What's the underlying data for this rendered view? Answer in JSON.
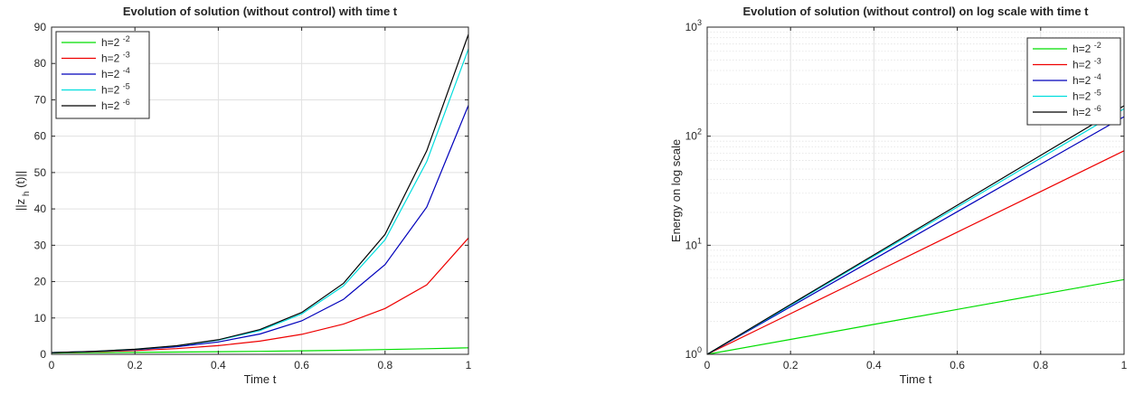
{
  "chart_data": [
    {
      "type": "line",
      "title": "Evolution of solution (without control) with time t",
      "xlabel": "Time t",
      "ylabel": "||z",
      "ylabel_sub": "h",
      "ylabel_tail": "(t)||",
      "xlim": [
        0,
        1
      ],
      "ylim": [
        0,
        90
      ],
      "yscale": "linear",
      "xticks": [
        0,
        0.2,
        0.4,
        0.6,
        0.8,
        1
      ],
      "xticklabels": [
        "0",
        "0.2",
        "0.4",
        "0.6",
        "0.8",
        "1"
      ],
      "yticks": [
        0,
        10,
        20,
        30,
        40,
        50,
        60,
        70,
        80,
        90
      ],
      "yticklabels": [
        "0",
        "10",
        "20",
        "30",
        "40",
        "50",
        "60",
        "70",
        "80",
        "90"
      ],
      "grid": true,
      "legend_position": "top-left",
      "x": [
        0,
        0.1,
        0.2,
        0.3,
        0.4,
        0.5,
        0.6,
        0.7,
        0.8,
        0.9,
        1
      ],
      "series": [
        {
          "name": "h=2",
          "exponent": "-2",
          "color": "#00dd00",
          "values": [
            0.38,
            0.45,
            0.52,
            0.61,
            0.71,
            0.83,
            0.97,
            1.13,
            1.32,
            1.55,
            1.8
          ]
        },
        {
          "name": "h=2",
          "exponent": "-3",
          "color": "#ee0000",
          "values": [
            0.45,
            0.68,
            1.04,
            1.57,
            2.38,
            3.62,
            5.5,
            8.3,
            12.6,
            19.1,
            32
          ]
        },
        {
          "name": "h=2",
          "exponent": "-4",
          "color": "#0000bb",
          "values": [
            0.47,
            0.77,
            1.27,
            2.08,
            3.4,
            5.6,
            9.2,
            15.1,
            24.7,
            40.5,
            68.5
          ]
        },
        {
          "name": "h=2",
          "exponent": "-5",
          "color": "#00dddd",
          "values": [
            0.47,
            0.8,
            1.35,
            2.3,
            3.9,
            6.55,
            11.1,
            18.8,
            31.5,
            53,
            84
          ]
        },
        {
          "name": "h=2",
          "exponent": "-6",
          "color": "#000000",
          "values": [
            0.47,
            0.81,
            1.38,
            2.36,
            4.0,
            6.8,
            11.5,
            19.5,
            33,
            56,
            88
          ]
        }
      ]
    },
    {
      "type": "line",
      "title": "Evolution of solution (without control) on log scale with time t",
      "xlabel": "Time t",
      "ylabel": "Energy on log scale",
      "xlim": [
        0,
        1
      ],
      "ylim": [
        1,
        1000
      ],
      "yscale": "log",
      "xticks": [
        0,
        0.2,
        0.4,
        0.6,
        0.8,
        1
      ],
      "xticklabels": [
        "0",
        "0.2",
        "0.4",
        "0.6",
        "0.8",
        "1"
      ],
      "yticks": [
        1,
        10,
        100,
        1000
      ],
      "ytick_base": "10",
      "ytick_exponents": [
        "0",
        "1",
        "2",
        "3"
      ],
      "grid": true,
      "legend_position": "top-right",
      "x": [
        0,
        0.2,
        0.4,
        0.6,
        0.8,
        1
      ],
      "series": [
        {
          "name": "h=2",
          "exponent": "-2",
          "color": "#00dd00",
          "values": [
            1,
            1.37,
            1.88,
            2.58,
            3.54,
            4.85
          ]
        },
        {
          "name": "h=2",
          "exponent": "-3",
          "color": "#ee0000",
          "values": [
            1,
            2.36,
            5.57,
            13.2,
            31.1,
            73.5
          ]
        },
        {
          "name": "h=2",
          "exponent": "-4",
          "color": "#0000bb",
          "values": [
            1,
            2.73,
            7.44,
            20.3,
            55.4,
            151
          ]
        },
        {
          "name": "h=2",
          "exponent": "-5",
          "color": "#00dddd",
          "values": [
            1,
            2.82,
            7.94,
            22.4,
            63.1,
            178
          ]
        },
        {
          "name": "h=2",
          "exponent": "-6",
          "color": "#000000",
          "values": [
            1,
            2.86,
            8.16,
            23.3,
            66.7,
            190
          ]
        }
      ]
    }
  ]
}
